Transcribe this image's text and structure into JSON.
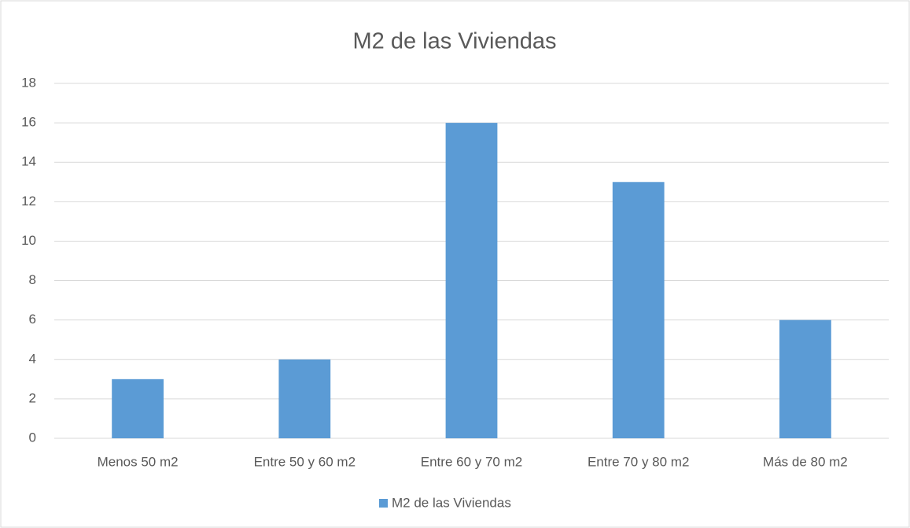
{
  "chart_data": {
    "type": "bar",
    "title": "M2 de las Viviendas",
    "categories": [
      "Menos 50 m2",
      "Entre 50 y 60 m2",
      "Entre 60 y 70 m2",
      "Entre 70 y 80 m2",
      "Más de 80 m2"
    ],
    "series": [
      {
        "name": "M2 de las Viviendas",
        "color": "#5b9bd5",
        "values": [
          3,
          4,
          16,
          13,
          6
        ]
      }
    ],
    "ylim": [
      0,
      18
    ],
    "yticks": [
      0,
      2,
      4,
      6,
      8,
      10,
      12,
      14,
      16,
      18
    ],
    "grid": true,
    "legend": "bottom"
  }
}
